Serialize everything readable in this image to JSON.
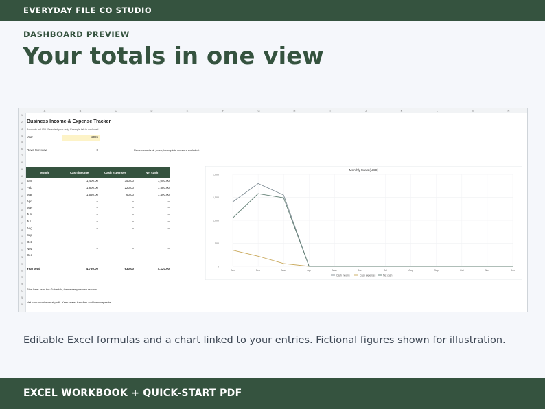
{
  "header": {
    "brand": "EVERYDAY FILE CO STUDIO"
  },
  "hero": {
    "eyebrow": "DASHBOARD PREVIEW",
    "title": "Your totals in one view"
  },
  "sheet": {
    "columns": [
      "A",
      "B",
      "C",
      "D",
      "E",
      "F",
      "G",
      "H",
      "I",
      "J",
      "K",
      "L",
      "M",
      "N"
    ],
    "rows": [
      "1",
      "2",
      "3",
      "4",
      "5",
      "6",
      "7",
      "8",
      "9",
      "10",
      "11",
      "12",
      "13",
      "14",
      "15",
      "16",
      "17",
      "18",
      "19",
      "20",
      "21",
      "22",
      "23",
      "24",
      "25",
      "26",
      "27",
      "28",
      "29"
    ],
    "title": "Business Income & Expense Tracker",
    "subtitle": "Amounts in USD. Selected year only. Example tab is excluded.",
    "year_label": "Year",
    "year_value": "2026",
    "review_label": "Rows to review",
    "review_value": "0",
    "review_note": "Review counts all years; incomplete rows are excluded.",
    "table_headers": [
      "Month",
      "Cash income",
      "Cash expenses",
      "Net cash"
    ],
    "table_rows": [
      [
        "Jan",
        "1,400.00",
        "350.00",
        "1,050.00"
      ],
      [
        "Feb",
        "1,800.00",
        "220.00",
        "1,580.00"
      ],
      [
        "Mar",
        "1,550.00",
        "60.00",
        "1,490.00"
      ],
      [
        "Apr",
        "–",
        "–",
        "–"
      ],
      [
        "May",
        "–",
        "–",
        "–"
      ],
      [
        "Jun",
        "–",
        "–",
        "–"
      ],
      [
        "Jul",
        "–",
        "–",
        "–"
      ],
      [
        "Aug",
        "–",
        "–",
        "–"
      ],
      [
        "Sep",
        "–",
        "–",
        "–"
      ],
      [
        "Oct",
        "–",
        "–",
        "–"
      ],
      [
        "Nov",
        "–",
        "–",
        "–"
      ],
      [
        "Dec",
        "–",
        "–",
        "–"
      ]
    ],
    "total_row": [
      "Year total",
      "4,750.00",
      "630.00",
      "4,120.00"
    ],
    "note1": "Start here: read the Guide tab, then enter your own records.",
    "note2": "Net cash is not accrual profit. Keep owner transfers and loans separate."
  },
  "chart_data": {
    "type": "line",
    "title": "Monthly totals (USD)",
    "categories": [
      "Jan",
      "Feb",
      "Mar",
      "Apr",
      "May",
      "Jun",
      "Jul",
      "Aug",
      "Sep",
      "Oct",
      "Nov",
      "Dec"
    ],
    "series": [
      {
        "name": "Cash income",
        "values": [
          1400,
          1800,
          1550,
          0,
          0,
          0,
          0,
          0,
          0,
          0,
          0,
          0
        ],
        "color": "#7f8c94"
      },
      {
        "name": "Cash expenses",
        "values": [
          350,
          220,
          60,
          0,
          0,
          0,
          0,
          0,
          0,
          0,
          0,
          0
        ],
        "color": "#c9a85a"
      },
      {
        "name": "Net cash",
        "values": [
          1050,
          1580,
          1490,
          0,
          0,
          0,
          0,
          0,
          0,
          0,
          0,
          0
        ],
        "color": "#5f7d72"
      }
    ],
    "yticks": [
      "0",
      "500",
      "1,000",
      "1,500",
      "2,000"
    ],
    "ylim": [
      0,
      2000
    ],
    "grid": true,
    "legend": "bottom"
  },
  "caption": "Editable Excel formulas and a chart linked to your entries. Fictional figures shown for illustration.",
  "footer": {
    "label": "EXCEL WORKBOOK + QUICK-START PDF"
  },
  "colors": {
    "brand": "#35533f",
    "highlight": "#fdf3c7"
  }
}
